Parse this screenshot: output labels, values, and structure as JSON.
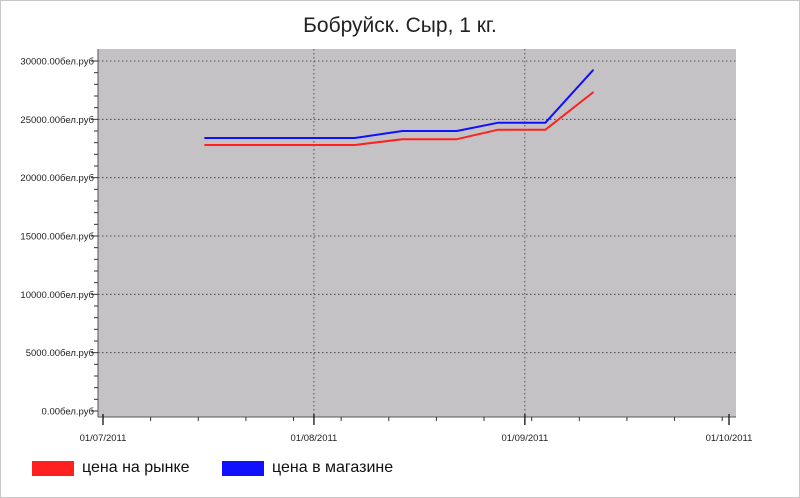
{
  "chart_data": {
    "type": "line",
    "title": "Бобруйск. Сыр, 1 кг.",
    "xlabel": "",
    "ylabel": "",
    "ylim": [
      0,
      30000
    ],
    "xlim": [
      "2011-07-01",
      "2011-10-01"
    ],
    "x_ticks": [
      "01/07/2011",
      "01/08/2011",
      "01/09/2011",
      "01/10/2011"
    ],
    "y_ticks": [
      {
        "value": 0,
        "label": "0.00бел.руб"
      },
      {
        "value": 5000,
        "label": "5000.00бел.руб"
      },
      {
        "value": 10000,
        "label": "10000.00бел.руб"
      },
      {
        "value": 15000,
        "label": "15000.00бел.руб"
      },
      {
        "value": 20000,
        "label": "20000.00бел.руб"
      },
      {
        "value": 25000,
        "label": "25000.00бел.руб"
      },
      {
        "value": 30000,
        "label": "30000.00бел.руб"
      }
    ],
    "grid": true,
    "legend_position": "bottom-left",
    "series": [
      {
        "name": "цена на рынке",
        "color": "#ff2020",
        "points": [
          {
            "x": "2011-07-16",
            "y": 22800
          },
          {
            "x": "2011-08-07",
            "y": 22800
          },
          {
            "x": "2011-08-14",
            "y": 23300
          },
          {
            "x": "2011-08-22",
            "y": 23300
          },
          {
            "x": "2011-08-28",
            "y": 24100
          },
          {
            "x": "2011-09-04",
            "y": 24100
          },
          {
            "x": "2011-09-11",
            "y": 27300
          }
        ]
      },
      {
        "name": "цена в магазине",
        "color": "#1010ff",
        "points": [
          {
            "x": "2011-07-16",
            "y": 23400
          },
          {
            "x": "2011-08-07",
            "y": 23400
          },
          {
            "x": "2011-08-14",
            "y": 24000
          },
          {
            "x": "2011-08-22",
            "y": 24000
          },
          {
            "x": "2011-08-28",
            "y": 24700
          },
          {
            "x": "2011-09-04",
            "y": 24700
          },
          {
            "x": "2011-09-11",
            "y": 29200
          }
        ]
      }
    ]
  }
}
